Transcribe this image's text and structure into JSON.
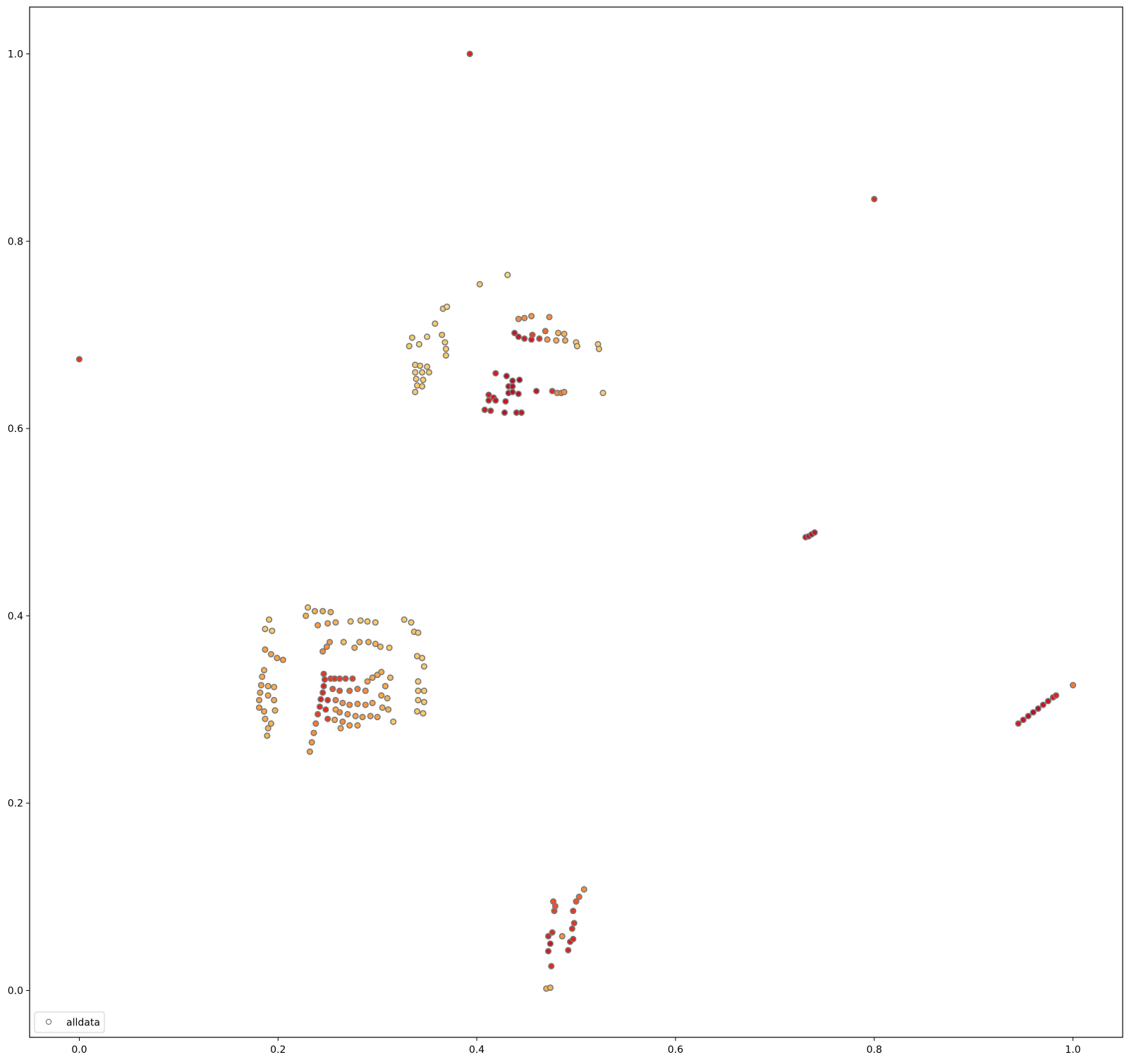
{
  "chart_data": {
    "type": "scatter",
    "title": "",
    "xlabel": "",
    "ylabel": "",
    "xlim": [
      -0.05,
      1.05
    ],
    "ylim": [
      -0.05,
      1.05
    ],
    "x_ticks": [
      0.0,
      0.2,
      0.4,
      0.6,
      0.8,
      1.0
    ],
    "y_ticks": [
      0.0,
      0.2,
      0.4,
      0.6,
      0.8,
      1.0
    ],
    "x_tick_labels": [
      "0.0",
      "0.2",
      "0.4",
      "0.6",
      "0.8",
      "1.0"
    ],
    "y_tick_labels": [
      "0.0",
      "0.2",
      "0.4",
      "0.6",
      "0.8",
      "1.0"
    ],
    "grid": false,
    "legend": {
      "position": "lower-left",
      "entries": [
        {
          "label": "alldata"
        }
      ]
    },
    "marker": {
      "shape": "circle",
      "edge_color": "#7a7a7a",
      "face": "colormap"
    },
    "colormap": {
      "name": "YlOrRd",
      "stops": [
        "#fee48a",
        "#feb24c",
        "#fd8d3c",
        "#f03b20",
        "#d7191c",
        "#a50026"
      ]
    },
    "series": [
      {
        "name": "alldata",
        "points": [
          [
            0.393,
            1.0,
            0.75
          ],
          [
            0.0,
            0.674,
            0.65
          ],
          [
            0.8,
            0.845,
            0.7
          ],
          [
            1.0,
            0.326,
            0.45
          ],
          [
            0.403,
            0.754,
            0.1
          ],
          [
            0.431,
            0.764,
            0.05
          ],
          [
            0.335,
            0.697,
            0.1
          ],
          [
            0.342,
            0.69,
            0.05
          ],
          [
            0.332,
            0.688,
            0.1
          ],
          [
            0.35,
            0.698,
            0.05
          ],
          [
            0.358,
            0.712,
            0.1
          ],
          [
            0.366,
            0.728,
            0.1
          ],
          [
            0.37,
            0.73,
            0.05
          ],
          [
            0.365,
            0.7,
            0.15
          ],
          [
            0.368,
            0.692,
            0.1
          ],
          [
            0.369,
            0.685,
            0.1
          ],
          [
            0.369,
            0.678,
            0.1
          ],
          [
            0.338,
            0.668,
            0.1
          ],
          [
            0.343,
            0.667,
            0.1
          ],
          [
            0.35,
            0.666,
            0.1
          ],
          [
            0.338,
            0.66,
            0.1
          ],
          [
            0.345,
            0.66,
            0.1
          ],
          [
            0.352,
            0.66,
            0.1
          ],
          [
            0.339,
            0.653,
            0.1
          ],
          [
            0.346,
            0.652,
            0.1
          ],
          [
            0.34,
            0.646,
            0.1
          ],
          [
            0.345,
            0.645,
            0.1
          ],
          [
            0.338,
            0.639,
            0.1
          ],
          [
            0.442,
            0.717,
            0.4
          ],
          [
            0.448,
            0.718,
            0.4
          ],
          [
            0.455,
            0.72,
            0.35
          ],
          [
            0.473,
            0.719,
            0.4
          ],
          [
            0.438,
            0.702,
            0.85
          ],
          [
            0.442,
            0.698,
            0.85
          ],
          [
            0.448,
            0.696,
            0.8
          ],
          [
            0.455,
            0.695,
            0.8
          ],
          [
            0.463,
            0.696,
            0.7
          ],
          [
            0.456,
            0.7,
            0.6
          ],
          [
            0.469,
            0.704,
            0.5
          ],
          [
            0.471,
            0.695,
            0.35
          ],
          [
            0.48,
            0.694,
            0.25
          ],
          [
            0.482,
            0.702,
            0.2
          ],
          [
            0.488,
            0.701,
            0.2
          ],
          [
            0.489,
            0.694,
            0.25
          ],
          [
            0.5,
            0.692,
            0.1
          ],
          [
            0.501,
            0.688,
            0.1
          ],
          [
            0.522,
            0.69,
            0.1
          ],
          [
            0.523,
            0.685,
            0.1
          ],
          [
            0.527,
            0.638,
            0.1
          ],
          [
            0.419,
            0.659,
            0.8
          ],
          [
            0.43,
            0.656,
            0.9
          ],
          [
            0.436,
            0.651,
            0.9
          ],
          [
            0.443,
            0.652,
            0.95
          ],
          [
            0.432,
            0.645,
            0.9
          ],
          [
            0.436,
            0.645,
            0.9
          ],
          [
            0.432,
            0.638,
            0.9
          ],
          [
            0.436,
            0.639,
            0.9
          ],
          [
            0.412,
            0.636,
            0.8
          ],
          [
            0.417,
            0.633,
            0.85
          ],
          [
            0.412,
            0.63,
            0.85
          ],
          [
            0.419,
            0.63,
            0.85
          ],
          [
            0.442,
            0.637,
            0.9
          ],
          [
            0.46,
            0.64,
            0.85
          ],
          [
            0.481,
            0.638,
            0.4
          ],
          [
            0.485,
            0.638,
            0.45
          ],
          [
            0.488,
            0.639,
            0.4
          ],
          [
            0.476,
            0.64,
            0.7
          ],
          [
            0.408,
            0.62,
            0.8
          ],
          [
            0.414,
            0.619,
            0.8
          ],
          [
            0.428,
            0.617,
            0.9
          ],
          [
            0.44,
            0.617,
            0.85
          ],
          [
            0.445,
            0.617,
            0.85
          ],
          [
            0.429,
            0.629,
            0.85
          ],
          [
            0.731,
            0.484,
            0.85
          ],
          [
            0.734,
            0.485,
            0.85
          ],
          [
            0.737,
            0.487,
            0.9
          ],
          [
            0.74,
            0.489,
            0.85
          ],
          [
            0.945,
            0.285,
            0.8
          ],
          [
            0.95,
            0.289,
            0.85
          ],
          [
            0.955,
            0.293,
            0.9
          ],
          [
            0.96,
            0.297,
            0.9
          ],
          [
            0.965,
            0.301,
            0.9
          ],
          [
            0.97,
            0.305,
            0.85
          ],
          [
            0.975,
            0.309,
            0.85
          ],
          [
            0.98,
            0.313,
            0.8
          ],
          [
            0.983,
            0.315,
            0.75
          ],
          [
            0.47,
            0.002,
            0.2
          ],
          [
            0.474,
            0.003,
            0.2
          ],
          [
            0.475,
            0.026,
            0.7
          ],
          [
            0.472,
            0.042,
            0.8
          ],
          [
            0.474,
            0.05,
            0.85
          ],
          [
            0.472,
            0.058,
            0.75
          ],
          [
            0.476,
            0.062,
            0.7
          ],
          [
            0.478,
            0.085,
            0.6
          ],
          [
            0.477,
            0.095,
            0.55
          ],
          [
            0.479,
            0.09,
            0.55
          ],
          [
            0.486,
            0.058,
            0.4
          ],
          [
            0.492,
            0.043,
            0.75
          ],
          [
            0.494,
            0.052,
            0.8
          ],
          [
            0.497,
            0.055,
            0.75
          ],
          [
            0.496,
            0.066,
            0.7
          ],
          [
            0.498,
            0.072,
            0.65
          ],
          [
            0.497,
            0.085,
            0.65
          ],
          [
            0.5,
            0.095,
            0.55
          ],
          [
            0.503,
            0.1,
            0.5
          ],
          [
            0.508,
            0.108,
            0.4
          ],
          [
            0.191,
            0.396,
            0.1
          ],
          [
            0.194,
            0.384,
            0.1
          ],
          [
            0.187,
            0.386,
            0.1
          ],
          [
            0.187,
            0.364,
            0.3
          ],
          [
            0.193,
            0.359,
            0.3
          ],
          [
            0.199,
            0.355,
            0.3
          ],
          [
            0.205,
            0.353,
            0.3
          ],
          [
            0.186,
            0.342,
            0.2
          ],
          [
            0.184,
            0.335,
            0.25
          ],
          [
            0.183,
            0.326,
            0.3
          ],
          [
            0.182,
            0.318,
            0.3
          ],
          [
            0.181,
            0.31,
            0.3
          ],
          [
            0.181,
            0.302,
            0.3
          ],
          [
            0.186,
            0.298,
            0.25
          ],
          [
            0.187,
            0.29,
            0.25
          ],
          [
            0.19,
            0.28,
            0.2
          ],
          [
            0.189,
            0.272,
            0.2
          ],
          [
            0.193,
            0.285,
            0.2
          ],
          [
            0.19,
            0.325,
            0.2
          ],
          [
            0.196,
            0.324,
            0.2
          ],
          [
            0.19,
            0.315,
            0.25
          ],
          [
            0.196,
            0.31,
            0.25
          ],
          [
            0.197,
            0.299,
            0.2
          ],
          [
            0.23,
            0.409,
            0.1
          ],
          [
            0.237,
            0.405,
            0.2
          ],
          [
            0.245,
            0.405,
            0.2
          ],
          [
            0.253,
            0.404,
            0.2
          ],
          [
            0.228,
            0.4,
            0.2
          ],
          [
            0.24,
            0.39,
            0.3
          ],
          [
            0.25,
            0.392,
            0.25
          ],
          [
            0.258,
            0.393,
            0.2
          ],
          [
            0.245,
            0.362,
            0.4
          ],
          [
            0.249,
            0.367,
            0.4
          ],
          [
            0.252,
            0.372,
            0.35
          ],
          [
            0.266,
            0.372,
            0.15
          ],
          [
            0.273,
            0.394,
            0.1
          ],
          [
            0.283,
            0.395,
            0.1
          ],
          [
            0.29,
            0.394,
            0.1
          ],
          [
            0.298,
            0.393,
            0.1
          ],
          [
            0.282,
            0.372,
            0.2
          ],
          [
            0.291,
            0.372,
            0.2
          ],
          [
            0.298,
            0.37,
            0.2
          ],
          [
            0.303,
            0.367,
            0.15
          ],
          [
            0.312,
            0.366,
            0.1
          ],
          [
            0.277,
            0.366,
            0.2
          ],
          [
            0.327,
            0.396,
            0.1
          ],
          [
            0.334,
            0.393,
            0.1
          ],
          [
            0.337,
            0.383,
            0.1
          ],
          [
            0.341,
            0.382,
            0.1
          ],
          [
            0.34,
            0.357,
            0.1
          ],
          [
            0.345,
            0.355,
            0.1
          ],
          [
            0.347,
            0.346,
            0.1
          ],
          [
            0.341,
            0.33,
            0.1
          ],
          [
            0.341,
            0.32,
            0.1
          ],
          [
            0.341,
            0.31,
            0.1
          ],
          [
            0.34,
            0.298,
            0.1
          ],
          [
            0.347,
            0.32,
            0.1
          ],
          [
            0.347,
            0.308,
            0.1
          ],
          [
            0.346,
            0.296,
            0.1
          ],
          [
            0.232,
            0.255,
            0.3
          ],
          [
            0.234,
            0.265,
            0.35
          ],
          [
            0.236,
            0.275,
            0.4
          ],
          [
            0.238,
            0.285,
            0.45
          ],
          [
            0.24,
            0.295,
            0.6
          ],
          [
            0.242,
            0.303,
            0.7
          ],
          [
            0.243,
            0.311,
            0.75
          ],
          [
            0.245,
            0.318,
            0.7
          ],
          [
            0.246,
            0.325,
            0.75
          ],
          [
            0.247,
            0.332,
            0.7
          ],
          [
            0.246,
            0.338,
            0.65
          ],
          [
            0.248,
            0.3,
            0.7
          ],
          [
            0.25,
            0.31,
            0.7
          ],
          [
            0.25,
            0.29,
            0.6
          ],
          [
            0.253,
            0.333,
            0.6
          ],
          [
            0.257,
            0.333,
            0.65
          ],
          [
            0.262,
            0.333,
            0.6
          ],
          [
            0.268,
            0.333,
            0.6
          ],
          [
            0.275,
            0.333,
            0.6
          ],
          [
            0.255,
            0.322,
            0.55
          ],
          [
            0.262,
            0.32,
            0.55
          ],
          [
            0.272,
            0.32,
            0.5
          ],
          [
            0.28,
            0.322,
            0.45
          ],
          [
            0.288,
            0.32,
            0.4
          ],
          [
            0.258,
            0.31,
            0.45
          ],
          [
            0.265,
            0.307,
            0.4
          ],
          [
            0.272,
            0.305,
            0.4
          ],
          [
            0.28,
            0.306,
            0.35
          ],
          [
            0.288,
            0.305,
            0.35
          ],
          [
            0.295,
            0.307,
            0.3
          ],
          [
            0.262,
            0.297,
            0.4
          ],
          [
            0.27,
            0.295,
            0.35
          ],
          [
            0.278,
            0.293,
            0.3
          ],
          [
            0.285,
            0.292,
            0.3
          ],
          [
            0.293,
            0.293,
            0.3
          ],
          [
            0.3,
            0.292,
            0.3
          ],
          [
            0.265,
            0.287,
            0.4
          ],
          [
            0.272,
            0.283,
            0.3
          ],
          [
            0.28,
            0.283,
            0.25
          ],
          [
            0.263,
            0.28,
            0.25
          ],
          [
            0.29,
            0.33,
            0.3
          ],
          [
            0.295,
            0.334,
            0.25
          ],
          [
            0.3,
            0.337,
            0.25
          ],
          [
            0.304,
            0.34,
            0.25
          ],
          [
            0.308,
            0.325,
            0.25
          ],
          [
            0.304,
            0.315,
            0.25
          ],
          [
            0.31,
            0.312,
            0.2
          ],
          [
            0.311,
            0.3,
            0.2
          ],
          [
            0.305,
            0.302,
            0.2
          ],
          [
            0.313,
            0.334,
            0.15
          ],
          [
            0.316,
            0.287,
            0.1
          ],
          [
            0.257,
            0.289,
            0.25
          ],
          [
            0.258,
            0.3,
            0.25
          ]
        ]
      }
    ]
  }
}
